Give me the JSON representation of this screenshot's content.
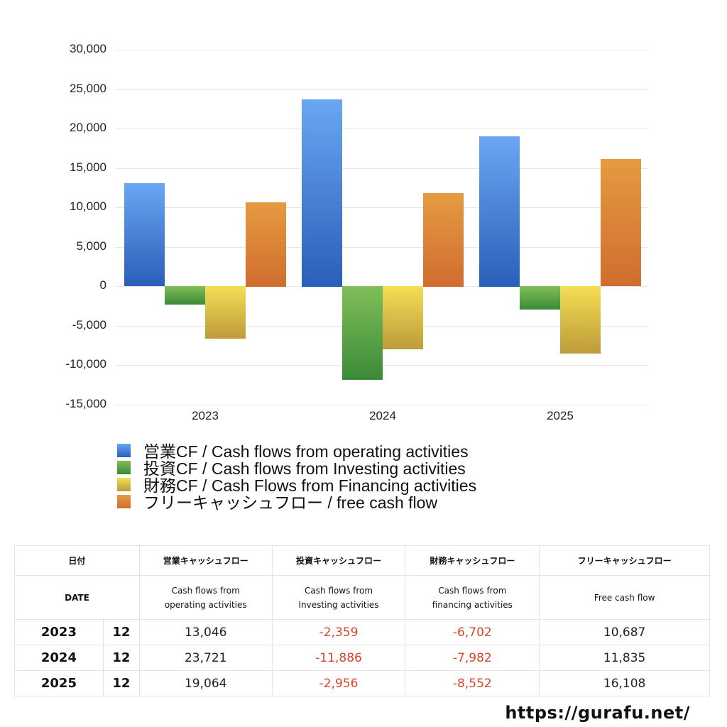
{
  "chart_data": {
    "type": "bar",
    "title": "",
    "xlabel": "",
    "ylabel": "",
    "categories": [
      "2023",
      "2024",
      "2025"
    ],
    "series": [
      {
        "name": "営業CF / Cash flows from operating activities",
        "color": "#4a86dc",
        "values": [
          13046,
          23721,
          19064
        ]
      },
      {
        "name": "投資CF / Cash flows from Investing activities",
        "color": "#5aa040",
        "values": [
          -2359,
          -11886,
          -2956
        ]
      },
      {
        "name": "財務CF / Cash Flows from Financing activities",
        "color": "#dcc24a",
        "values": [
          -6702,
          -7982,
          -8552
        ]
      },
      {
        "name": "フリーキャッシュフロー / free cash flow",
        "color": "#d98434",
        "values": [
          10687,
          11835,
          16108
        ]
      }
    ],
    "ylim": [
      -15000,
      30000
    ],
    "yticks": [
      "30,000",
      "25,000",
      "20,000",
      "15,000",
      "10,000",
      "5,000",
      "0",
      "-5,000",
      "-10,000",
      "-15,000"
    ],
    "grid": true,
    "legend_position": "bottom"
  },
  "legend": {
    "items": [
      {
        "label": "営業CF / Cash flows from operating activities"
      },
      {
        "label": "投資CF / Cash flows from Investing activities"
      },
      {
        "label": "財務CF / Cash Flows from Financing activities"
      },
      {
        "label": "フリーキャッシュフロー / free cash flow"
      }
    ]
  },
  "table": {
    "header_jp": {
      "date": "日付",
      "operating": "営業キャッシュフロー",
      "investing": "投資キャッシュフロー",
      "financing": "財務キャッシュフロー",
      "free": "フリーキャッシュフロー"
    },
    "header_en": {
      "date": "DATE",
      "operating_1": "Cash flows from",
      "operating_2": "operating activities",
      "investing_1": "Cash flows from",
      "investing_2": "Investing activities",
      "financing_1": "Cash flows from",
      "financing_2": "financing activities",
      "free": "Free cash flow"
    },
    "rows": [
      {
        "year": "2023",
        "month": "12",
        "operating": "13,046",
        "investing": "-2,359",
        "financing": "-6,702",
        "free": "10,687"
      },
      {
        "year": "2024",
        "month": "12",
        "operating": "23,721",
        "investing": "-11,886",
        "financing": "-7,982",
        "free": "11,835"
      },
      {
        "year": "2025",
        "month": "12",
        "operating": "19,064",
        "investing": "-2,956",
        "financing": "-8,552",
        "free": "16,108"
      }
    ]
  },
  "footer": {
    "url": "https://gurafu.net/"
  }
}
